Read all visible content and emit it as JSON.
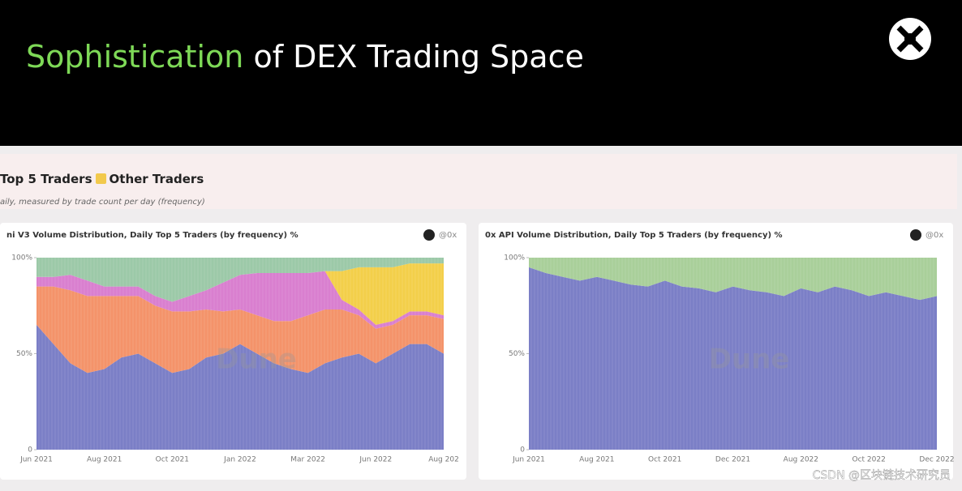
{
  "header": {
    "title_highlight": "Sophistication",
    "title_rest": "of DEX Trading Space"
  },
  "dashboard": {
    "heading": "Top 5 Traders",
    "legend_label": "Other Traders",
    "subtitle": "aily, measured by trade count per day (frequency)"
  },
  "chart_data": [
    {
      "type": "area",
      "stacked": true,
      "title": "ni V3 Volume Distribution, Daily Top 5 Traders (by frequency) %",
      "handle": "@0x",
      "watermark": "Dune",
      "categories": [
        "Jun 2021",
        null,
        null,
        null,
        "Aug 2021",
        null,
        null,
        null,
        "Oct 2021",
        null,
        null,
        null,
        "Jan 2022",
        null,
        null,
        null,
        "Mar 2022",
        null,
        null,
        null,
        "Jun 2022",
        null,
        null,
        null,
        "Aug 202"
      ],
      "series": [
        {
          "color": "#7b7fc6",
          "values": [
            65,
            55,
            45,
            40,
            42,
            48,
            50,
            45,
            40,
            42,
            48,
            50,
            55,
            50,
            45,
            42,
            40,
            45,
            48,
            50,
            45,
            50,
            55,
            55,
            50
          ]
        },
        {
          "color": "#f4936a",
          "values": [
            20,
            30,
            38,
            40,
            38,
            32,
            30,
            30,
            32,
            30,
            25,
            22,
            18,
            20,
            22,
            25,
            30,
            28,
            25,
            20,
            18,
            15,
            15,
            15,
            18
          ]
        },
        {
          "color": "#d97fcf",
          "values": [
            5,
            5,
            8,
            8,
            5,
            5,
            5,
            5,
            5,
            8,
            10,
            15,
            18,
            22,
            25,
            25,
            22,
            20,
            5,
            3,
            2,
            2,
            2,
            2,
            2
          ]
        },
        {
          "color": "#f3cf4a",
          "values": [
            0,
            0,
            0,
            0,
            0,
            0,
            0,
            0,
            0,
            0,
            0,
            0,
            0,
            0,
            0,
            0,
            0,
            0,
            15,
            22,
            30,
            28,
            25,
            25,
            27
          ]
        },
        {
          "color": "#9cc9a8",
          "values": [
            10,
            10,
            9,
            12,
            15,
            15,
            15,
            20,
            23,
            20,
            17,
            13,
            9,
            8,
            8,
            8,
            8,
            7,
            7,
            5,
            5,
            5,
            3,
            3,
            3
          ]
        }
      ],
      "ylim": [
        0,
        100
      ],
      "yticks": [
        0,
        {
          "value": 50,
          "label": "50%"
        },
        {
          "value": 100,
          "label": "100%"
        }
      ]
    },
    {
      "type": "area",
      "stacked": true,
      "title": "0x API Volume Distribution, Daily Top 5 Traders (by frequency) %",
      "handle": "@0x",
      "watermark": "Dune",
      "categories": [
        "Jun 2021",
        null,
        null,
        null,
        "Aug 2021",
        null,
        null,
        null,
        "Oct 2021",
        null,
        null,
        null,
        "Dec 2021",
        null,
        null,
        null,
        "Aug 2022",
        null,
        null,
        null,
        "Oct 2022",
        null,
        null,
        null,
        "Dec 2022"
      ],
      "series": [
        {
          "color": "#7b7fc6",
          "values": [
            95,
            92,
            90,
            88,
            90,
            88,
            86,
            85,
            88,
            85,
            84,
            82,
            85,
            83,
            82,
            80,
            84,
            82,
            85,
            83,
            80,
            82,
            80,
            78,
            80
          ]
        },
        {
          "color": "#a9cf9a",
          "values": [
            5,
            8,
            10,
            12,
            10,
            12,
            14,
            15,
            12,
            15,
            16,
            18,
            15,
            17,
            18,
            20,
            16,
            18,
            15,
            17,
            20,
            18,
            20,
            22,
            20
          ]
        }
      ],
      "ylim": [
        0,
        100
      ],
      "yticks": [
        0,
        {
          "value": 50,
          "label": "50%"
        },
        {
          "value": 100,
          "label": "100%"
        }
      ]
    }
  ],
  "footer_watermark": "CSDN @区块链技术研究员"
}
